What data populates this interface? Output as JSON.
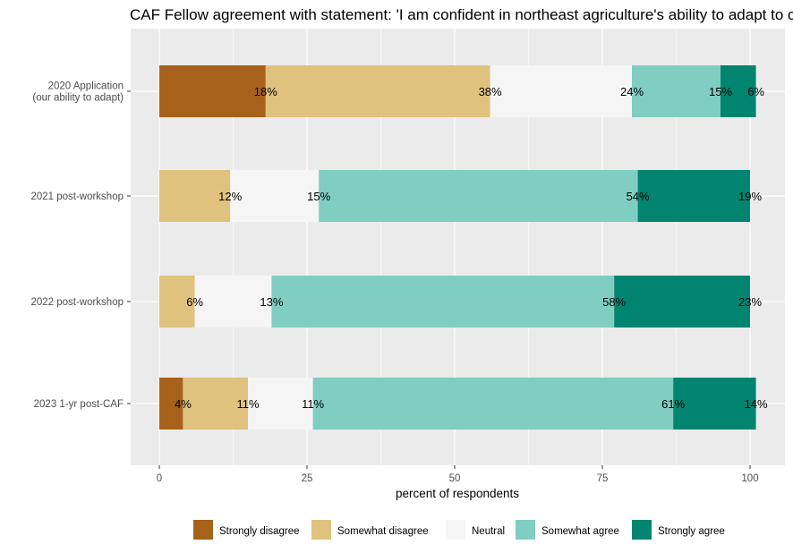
{
  "chart_data": {
    "type": "bar",
    "orientation": "horizontal",
    "stacked": true,
    "title": "CAF Fellow agreement with statement: 'I am confident in northeast agriculture's ability to adapt to climate change.'",
    "xlabel": "percent of respondents",
    "ylabel": "",
    "xlim": [
      0,
      100
    ],
    "x_ticks": [
      "0",
      "25",
      "50",
      "75",
      "100"
    ],
    "x_tick_values": [
      0,
      25,
      50,
      75,
      100
    ],
    "grid": true,
    "legend_position": "bottom",
    "categories": [
      [
        "2020 Application",
        "(our ability to adapt)"
      ],
      [
        "2021 post-workshop"
      ],
      [
        "2022 post-workshop"
      ],
      [
        "2023 1-yr post-CAF"
      ]
    ],
    "series": [
      {
        "name": "Strongly disagree",
        "color": "#A6611A",
        "values": [
          18,
          0,
          0,
          4
        ],
        "labels": [
          "18%",
          "",
          "",
          "4%"
        ]
      },
      {
        "name": "Somewhat disagree",
        "color": "#DFC27D",
        "values": [
          38,
          12,
          6,
          11
        ],
        "labels": [
          "38%",
          "12%",
          "6%",
          "11%"
        ]
      },
      {
        "name": "Neutral",
        "color": "#F5F5F5",
        "values": [
          24,
          15,
          13,
          11
        ],
        "labels": [
          "24%",
          "15%",
          "13%",
          "11%"
        ]
      },
      {
        "name": "Somewhat agree",
        "color": "#80CDC1",
        "values": [
          15,
          54,
          58,
          61
        ],
        "labels": [
          "15%",
          "54%",
          "58%",
          "61%"
        ]
      },
      {
        "name": "Strongly agree",
        "color": "#018571",
        "values": [
          6,
          19,
          23,
          14
        ],
        "labels": [
          "6%",
          "19%",
          "23%",
          "14%"
        ]
      }
    ],
    "panel_background": "#EBEBEB",
    "grid_color": "#FFFFFF"
  }
}
